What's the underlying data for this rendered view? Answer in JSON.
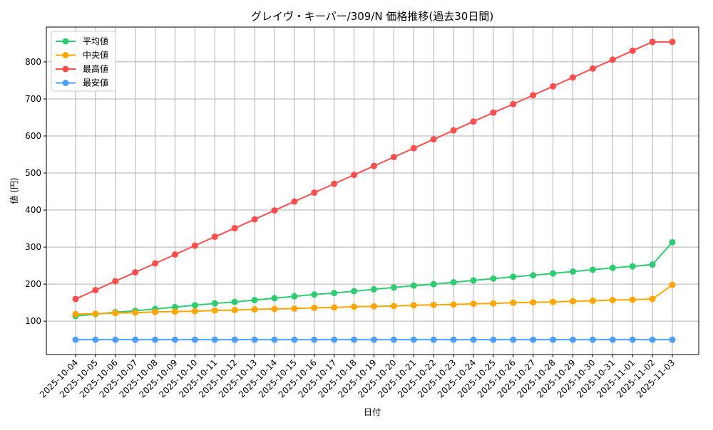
{
  "chart_data": {
    "type": "line",
    "title": "グレイヴ・キーパー/309/N 価格推移(過去30日間)",
    "xlabel": "日付",
    "ylabel": "値 (円)",
    "ylim": [
      10,
      894
    ],
    "yticks": [
      100,
      200,
      300,
      400,
      500,
      600,
      700,
      800
    ],
    "grid": true,
    "legend_position": "top-left",
    "x": [
      "2025-10-04",
      "2025-10-05",
      "2025-10-06",
      "2025-10-07",
      "2025-10-08",
      "2025-10-09",
      "2025-10-10",
      "2025-10-11",
      "2025-10-12",
      "2025-10-13",
      "2025-10-14",
      "2025-10-15",
      "2025-10-16",
      "2025-10-17",
      "2025-10-18",
      "2025-10-19",
      "2025-10-20",
      "2025-10-21",
      "2025-10-22",
      "2025-10-23",
      "2025-10-24",
      "2025-10-25",
      "2025-10-26",
      "2025-10-27",
      "2025-10-28",
      "2025-10-29",
      "2025-10-30",
      "2025-10-31",
      "2025-11-01",
      "2025-11-02",
      "2025-11-03"
    ],
    "series": [
      {
        "name": "平均値",
        "color": "#2ecc71",
        "values": [
          114,
          119,
          124,
          128,
          133,
          138,
          143,
          148,
          152,
          157,
          162,
          167,
          172,
          176,
          181,
          186,
          191,
          196,
          200,
          205,
          210,
          215,
          220,
          224,
          229,
          234,
          239,
          244,
          248,
          253,
          313
        ]
      },
      {
        "name": "中央値",
        "color": "#ffa500",
        "values": [
          119,
          120,
          122,
          123,
          125,
          126,
          127,
          129,
          130,
          132,
          133,
          134,
          136,
          137,
          139,
          140,
          141,
          143,
          144,
          145,
          147,
          148,
          150,
          151,
          152,
          154,
          155,
          157,
          158,
          160,
          198
        ]
      },
      {
        "name": "最高値",
        "color": "#ff4d4d",
        "values": [
          160,
          184,
          208,
          232,
          256,
          280,
          304,
          328,
          351,
          375,
          399,
          423,
          447,
          471,
          495,
          519,
          543,
          567,
          591,
          615,
          639,
          663,
          686,
          710,
          734,
          758,
          782,
          806,
          830,
          854,
          854
        ]
      },
      {
        "name": "最安値",
        "color": "#4d9fff",
        "values": [
          50,
          50,
          50,
          50,
          50,
          50,
          50,
          50,
          50,
          50,
          50,
          50,
          50,
          50,
          50,
          50,
          50,
          50,
          50,
          50,
          50,
          50,
          50,
          50,
          50,
          50,
          50,
          50,
          50,
          50,
          50
        ]
      }
    ]
  }
}
